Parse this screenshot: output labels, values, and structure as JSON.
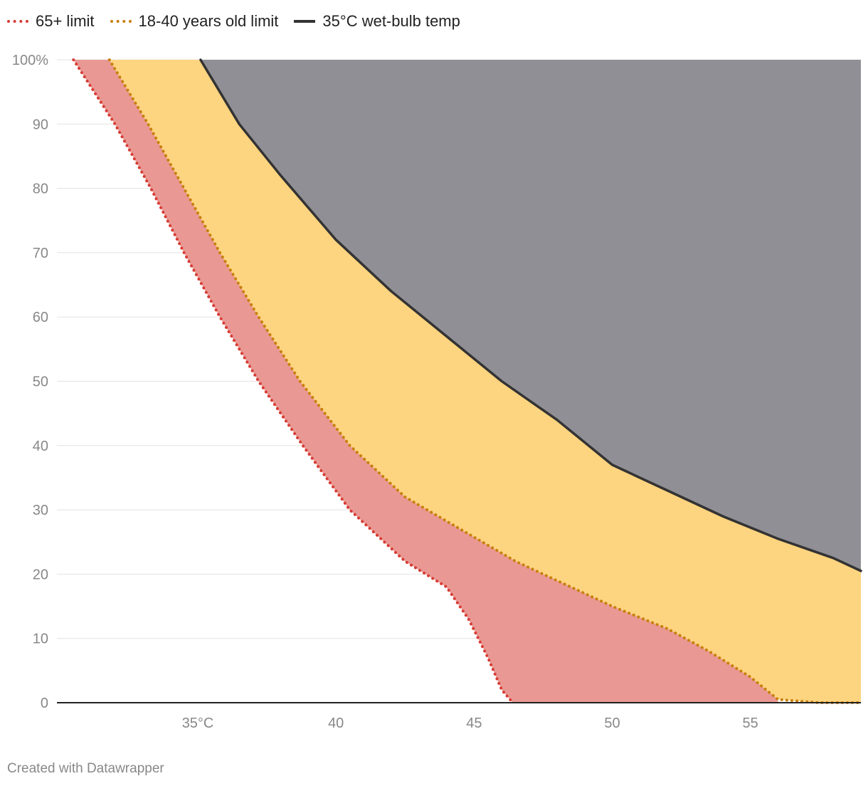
{
  "legend": [
    {
      "label": "65+ limit",
      "color": "#d63b34",
      "style": "dotted"
    },
    {
      "label": "18-40 years old limit",
      "color": "#c87f0a",
      "style": "dotted"
    },
    {
      "label": "35°C wet-bulb temp",
      "color": "#333333",
      "style": "solid"
    }
  ],
  "credit": "Created with Datawrapper",
  "chart_data": {
    "type": "area",
    "title": "",
    "xlabel": "",
    "ylabel": "",
    "xlim": [
      29.9,
      59
    ],
    "ylim": [
      0,
      100
    ],
    "x_ticks": [
      {
        "value": 35,
        "label": "35°C"
      },
      {
        "value": 40,
        "label": "40"
      },
      {
        "value": 45,
        "label": "45"
      },
      {
        "value": 50,
        "label": "50"
      },
      {
        "value": 55,
        "label": "55"
      }
    ],
    "y_ticks": [
      {
        "value": 0,
        "label": "0"
      },
      {
        "value": 10,
        "label": "10"
      },
      {
        "value": 20,
        "label": "20"
      },
      {
        "value": 30,
        "label": "30"
      },
      {
        "value": 40,
        "label": "40"
      },
      {
        "value": 50,
        "label": "50"
      },
      {
        "value": 60,
        "label": "60"
      },
      {
        "value": 70,
        "label": "70"
      },
      {
        "value": 80,
        "label": "80"
      },
      {
        "value": 90,
        "label": "90"
      },
      {
        "value": 100,
        "label": "100%"
      }
    ],
    "grid": true,
    "legend_position": "top-left",
    "series": [
      {
        "name": "65+ limit",
        "color": "#d63b34",
        "fill": "#e99893",
        "line_style": "dotted",
        "points": [
          [
            30.5,
            100
          ],
          [
            32,
            90
          ],
          [
            33.3,
            80
          ],
          [
            34.5,
            70
          ],
          [
            35.8,
            60
          ],
          [
            37.2,
            50
          ],
          [
            38.8,
            40
          ],
          [
            40.5,
            30
          ],
          [
            42.5,
            22
          ],
          [
            44,
            18
          ],
          [
            44.8,
            13
          ],
          [
            45.5,
            7
          ],
          [
            46.0,
            2
          ],
          [
            46.4,
            0
          ]
        ]
      },
      {
        "name": "18-40 years old limit",
        "color": "#c87f0a",
        "fill": "#fdd47f",
        "line_style": "dotted",
        "points": [
          [
            31.8,
            100
          ],
          [
            33.2,
            90
          ],
          [
            34.5,
            80
          ],
          [
            35.8,
            70
          ],
          [
            37.2,
            60
          ],
          [
            38.7,
            50
          ],
          [
            40.5,
            40
          ],
          [
            42.5,
            32
          ],
          [
            44.5,
            27
          ],
          [
            46.5,
            22
          ],
          [
            48,
            19
          ],
          [
            50,
            15
          ],
          [
            52,
            11.5
          ],
          [
            53.5,
            8
          ],
          [
            55,
            4
          ],
          [
            56,
            0.5
          ],
          [
            57.5,
            0
          ],
          [
            59,
            0
          ]
        ]
      },
      {
        "name": "35°C wet-bulb temp",
        "color": "#333333",
        "fill": "#908f96",
        "line_style": "solid",
        "points": [
          [
            35.1,
            100
          ],
          [
            36.5,
            90
          ],
          [
            38,
            82
          ],
          [
            40,
            72
          ],
          [
            42,
            64
          ],
          [
            44,
            57
          ],
          [
            46,
            50
          ],
          [
            48,
            44
          ],
          [
            50,
            37
          ],
          [
            52,
            33
          ],
          [
            54,
            29
          ],
          [
            56,
            25.5
          ],
          [
            58,
            22.5
          ],
          [
            59,
            20.5
          ]
        ]
      }
    ]
  }
}
